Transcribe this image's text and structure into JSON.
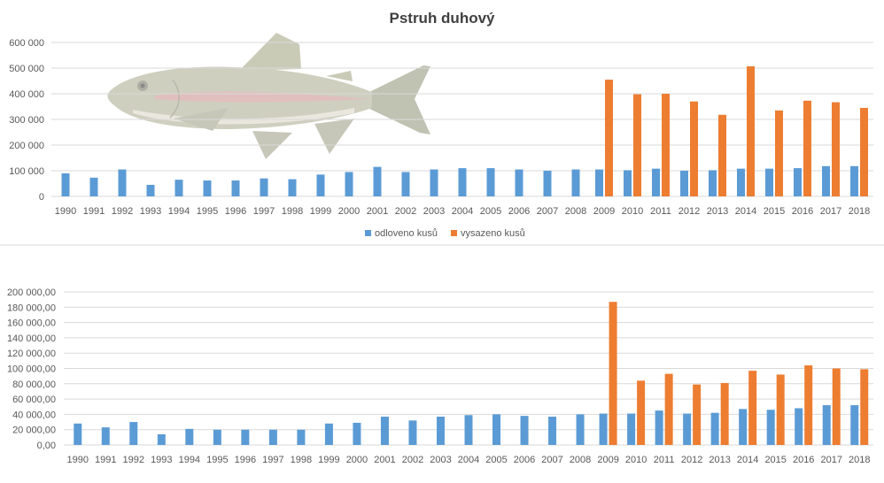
{
  "colors": {
    "odloveno": "#5b9bd5",
    "vysazeno": "#ed7d31",
    "grid": "#d9d9d9",
    "text": "#595959"
  },
  "chart_data": [
    {
      "type": "bar",
      "title": "Pstruh duhový",
      "categories": [
        "1990",
        "1991",
        "1992",
        "1993",
        "1994",
        "1995",
        "1996",
        "1997",
        "1998",
        "1999",
        "2000",
        "2001",
        "2002",
        "2003",
        "2004",
        "2005",
        "2006",
        "2007",
        "2008",
        "2009",
        "2010",
        "2011",
        "2012",
        "2013",
        "2014",
        "2015",
        "2016",
        "2017",
        "2018"
      ],
      "ylim": [
        0,
        600000
      ],
      "yticks": [
        0,
        100000,
        200000,
        300000,
        400000,
        500000,
        600000
      ],
      "ytick_labels": [
        "0",
        "100 000",
        "200 000",
        "300 000",
        "400 000",
        "500 000",
        "600 000"
      ],
      "grid": true,
      "legend_position": "bottom",
      "series": [
        {
          "name": "odloveno kusů",
          "color": "#5b9bd5",
          "values": [
            90000,
            73000,
            105000,
            45000,
            65000,
            62000,
            62000,
            70000,
            67000,
            85000,
            95000,
            115000,
            95000,
            105000,
            110000,
            110000,
            105000,
            100000,
            105000,
            105000,
            102000,
            108000,
            100000,
            102000,
            108000,
            108000,
            110000,
            118000,
            118000
          ]
        },
        {
          "name": "vysazeno kusů",
          "color": "#ed7d31",
          "values": [
            null,
            null,
            null,
            null,
            null,
            null,
            null,
            null,
            null,
            null,
            null,
            null,
            null,
            null,
            null,
            null,
            null,
            null,
            null,
            455000,
            398000,
            400000,
            370000,
            318000,
            507000,
            335000,
            373000,
            367000,
            345000
          ]
        }
      ]
    },
    {
      "type": "bar",
      "categories": [
        "1990",
        "1991",
        "1992",
        "1993",
        "1994",
        "1995",
        "1996",
        "1997",
        "1998",
        "1999",
        "2000",
        "2001",
        "2002",
        "2003",
        "2004",
        "2005",
        "2006",
        "2007",
        "2008",
        "2009",
        "2010",
        "2011",
        "2012",
        "2013",
        "2014",
        "2015",
        "2016",
        "2017",
        "2018"
      ],
      "ylim": [
        0,
        200000
      ],
      "yticks": [
        0,
        20000,
        40000,
        60000,
        80000,
        100000,
        120000,
        140000,
        160000,
        180000,
        200000
      ],
      "ytick_labels": [
        "0,00",
        "20 000,00",
        "40 000,00",
        "60 000,00",
        "80 000,00",
        "100 000,00",
        "120 000,00",
        "140 000,00",
        "160 000,00",
        "180 000,00",
        "200 000,00"
      ],
      "grid": true,
      "series": [
        {
          "color": "#5b9bd5",
          "values": [
            28000,
            23000,
            30000,
            14000,
            21000,
            20000,
            20000,
            20000,
            20000,
            28000,
            29000,
            37000,
            32000,
            37000,
            39000,
            40000,
            38000,
            37000,
            40000,
            41000,
            41000,
            45000,
            41000,
            42000,
            47000,
            46000,
            48000,
            52000,
            52000
          ]
        },
        {
          "color": "#ed7d31",
          "values": [
            null,
            null,
            null,
            null,
            null,
            null,
            null,
            null,
            null,
            null,
            null,
            null,
            null,
            null,
            null,
            null,
            null,
            null,
            null,
            187000,
            84000,
            93000,
            79000,
            81000,
            97000,
            92000,
            104000,
            100000,
            99000
          ]
        }
      ]
    }
  ]
}
